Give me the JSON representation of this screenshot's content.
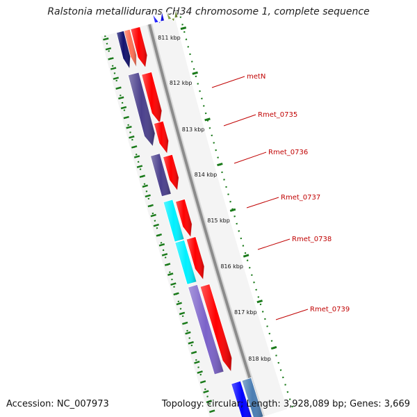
{
  "title": "Ralstonia metallidurans CH34 chromosome 1, complete sequence",
  "footer": {
    "accession": "Accession: NC_007973",
    "summary": "Topology: circular; Length: 3,928,089 bp; Genes: 3,669"
  },
  "colors": {
    "backbone": "#8c8c8c",
    "tick": "#1a7a1a",
    "label": "#c00000",
    "red": "#ff0000",
    "salmon": "#ff7055",
    "navy": "#11116e",
    "purple": "#4a3f8c",
    "cyan": "#00f0ff",
    "lavender": "#7b62c9",
    "blue": "#0000ff",
    "steel": "#4a7db3",
    "olive": "#6b8e23"
  },
  "ticks": [
    {
      "label": "811 kbp"
    },
    {
      "label": "812 kbp"
    },
    {
      "label": "813 kbp"
    },
    {
      "label": "814 kbp"
    },
    {
      "label": "815 kbp"
    },
    {
      "label": "816 kbp"
    },
    {
      "label": "817 kbp"
    },
    {
      "label": "818 kbp"
    }
  ],
  "gene_labels": [
    {
      "name": "metN"
    },
    {
      "name": "Rmet_0735"
    },
    {
      "name": "Rmet_0736"
    },
    {
      "name": "Rmet_0737"
    },
    {
      "name": "Rmet_0738"
    },
    {
      "name": "Rmet_0739"
    }
  ]
}
